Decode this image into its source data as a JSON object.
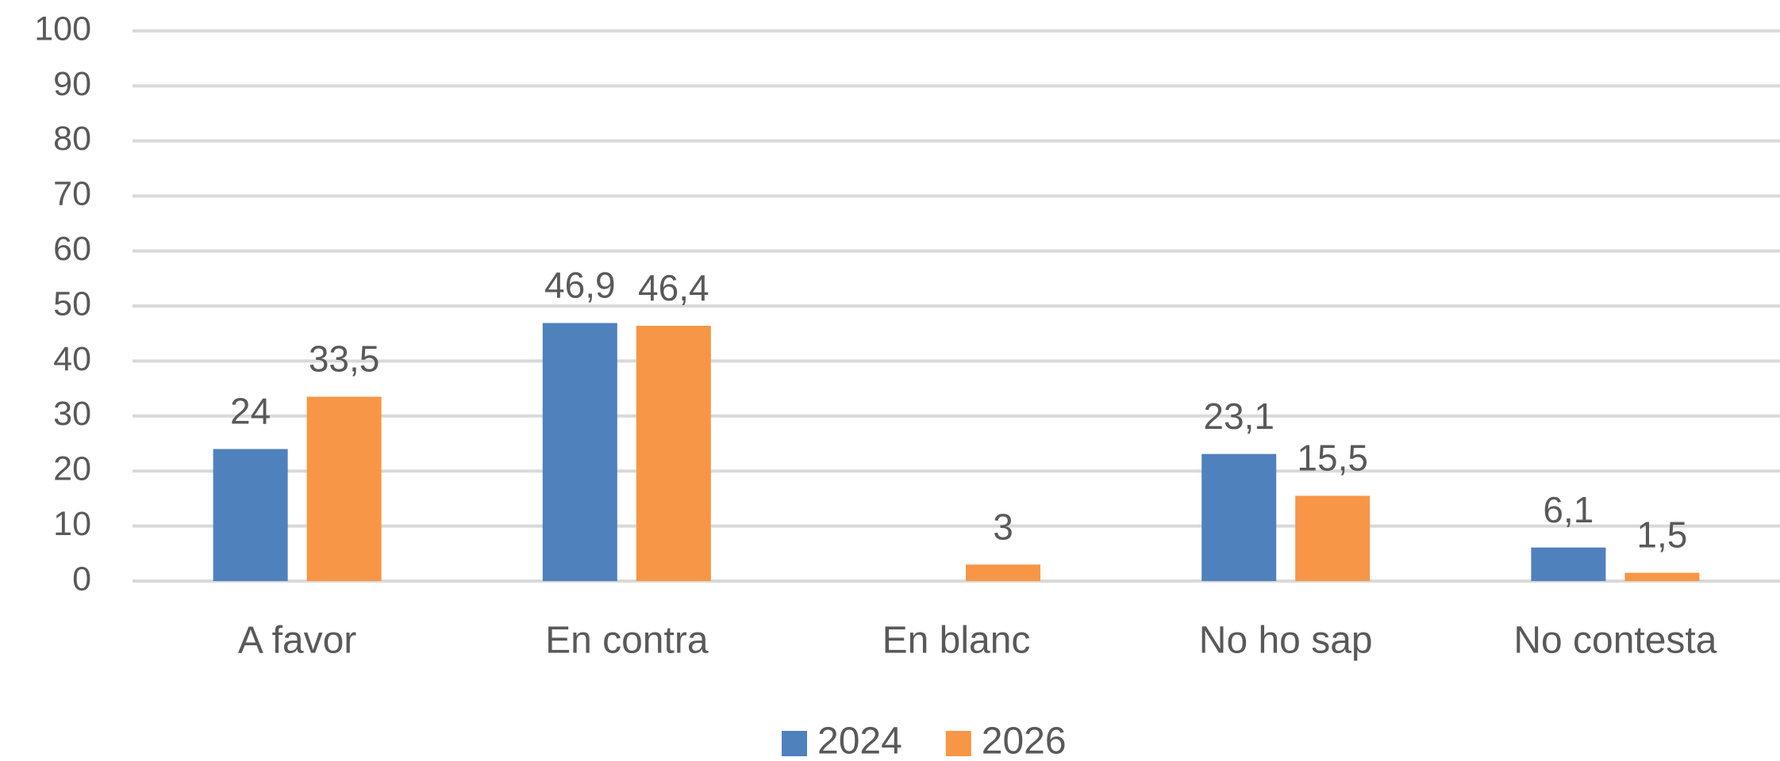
{
  "chart_data": {
    "type": "bar",
    "categories": [
      "A favor",
      "En contra",
      "En blanc",
      "No ho sap",
      "No contesta"
    ],
    "series": [
      {
        "name": "2024",
        "color": "#4f81bd",
        "values": [
          24,
          46.9,
          null,
          23.1,
          6.1
        ],
        "value_labels": [
          "24",
          "46,9",
          null,
          "23,1",
          "6,1"
        ]
      },
      {
        "name": "2026",
        "color": "#f79646",
        "values": [
          33.5,
          46.4,
          3,
          15.5,
          1.5
        ],
        "value_labels": [
          "33,5",
          "46,4",
          "3",
          "15,5",
          "1,5"
        ]
      }
    ],
    "ylim": [
      0,
      100
    ],
    "yticks": [
      0,
      10,
      20,
      30,
      40,
      50,
      60,
      70,
      80,
      90,
      100
    ],
    "grid": true,
    "legend": "bottom"
  }
}
